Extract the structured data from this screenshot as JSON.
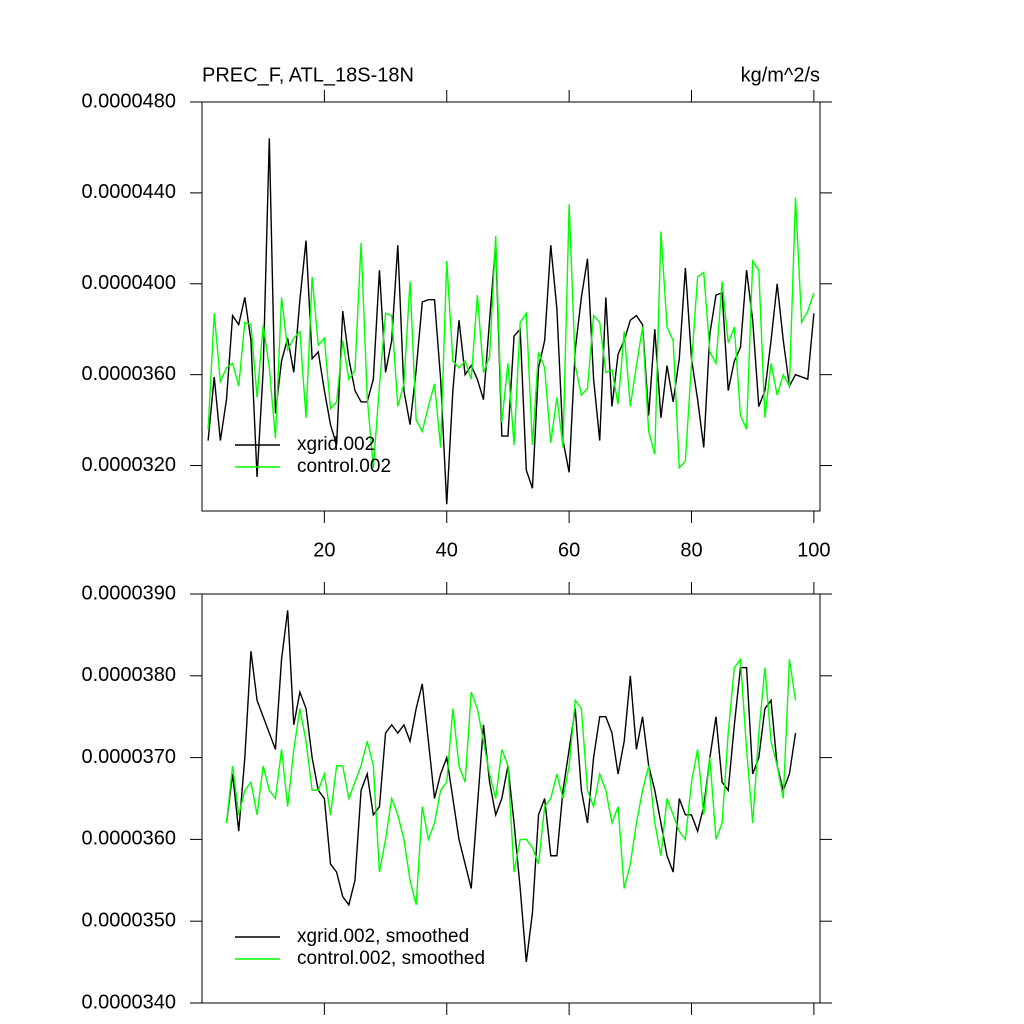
{
  "chart_data": [
    {
      "type": "line",
      "title": "PREC_F, ATL_18S-18N",
      "units": "kg/m^2/s",
      "legend": "lower left",
      "x": [
        1,
        2,
        3,
        4,
        5,
        6,
        7,
        8,
        9,
        10,
        11,
        12,
        13,
        14,
        15,
        16,
        17,
        18,
        19,
        20,
        21,
        22,
        23,
        24,
        25,
        26,
        27,
        28,
        29,
        30,
        31,
        32,
        33,
        34,
        35,
        36,
        37,
        38,
        39,
        40,
        41,
        42,
        43,
        44,
        45,
        46,
        47,
        48,
        49,
        50,
        51,
        52,
        53,
        54,
        55,
        56,
        57,
        58,
        59,
        60,
        61,
        62,
        63,
        64,
        65,
        66,
        67,
        68,
        69,
        70,
        71,
        72,
        73,
        74,
        75,
        76,
        77,
        78,
        79,
        80,
        81,
        82,
        83,
        84,
        85,
        86,
        87,
        88,
        89,
        90,
        91,
        92,
        93,
        94,
        95,
        96,
        97,
        98,
        99,
        100
      ],
      "xlim": [
        0,
        101
      ],
      "xticks": [
        20,
        40,
        60,
        80,
        100
      ],
      "ylim": [
        3e-05,
        4.8e-05
      ],
      "yticks": [
        {
          "value": 3.2e-05,
          "label": "0.0000320"
        },
        {
          "value": 3.6e-05,
          "label": "0.0000360"
        },
        {
          "value": 4e-05,
          "label": "0.0000400"
        },
        {
          "value": 4.4e-05,
          "label": "0.0000440"
        },
        {
          "value": 4.8e-05,
          "label": "0.0000480"
        }
      ],
      "series": [
        {
          "name": "xgrid.002",
          "color": "#000000",
          "values": [
            3.31e-05,
            3.59e-05,
            3.31e-05,
            3.49e-05,
            3.86e-05,
            3.82e-05,
            3.94e-05,
            3.75e-05,
            3.15e-05,
            3.62e-05,
            4.64e-05,
            3.43e-05,
            3.66e-05,
            3.76e-05,
            3.61e-05,
            3.93e-05,
            4.19e-05,
            3.67e-05,
            3.7e-05,
            3.53e-05,
            3.38e-05,
            3.29e-05,
            3.88e-05,
            3.67e-05,
            3.53e-05,
            3.48e-05,
            3.48e-05,
            3.58e-05,
            4.06e-05,
            3.61e-05,
            3.75e-05,
            4.17e-05,
            3.53e-05,
            3.38e-05,
            3.62e-05,
            3.92e-05,
            3.93e-05,
            3.93e-05,
            3.58e-05,
            3.03e-05,
            3.53e-05,
            3.84e-05,
            3.6e-05,
            3.64e-05,
            3.58e-05,
            3.49e-05,
            3.84e-05,
            4.18e-05,
            3.33e-05,
            3.33e-05,
            3.77e-05,
            3.8e-05,
            3.18e-05,
            3.1e-05,
            3.63e-05,
            3.75e-05,
            4.17e-05,
            3.89e-05,
            3.31e-05,
            3.17e-05,
            3.71e-05,
            3.94e-05,
            4.11e-05,
            3.58e-05,
            3.31e-05,
            3.94e-05,
            3.46e-05,
            3.69e-05,
            3.75e-05,
            3.84e-05,
            3.86e-05,
            3.82e-05,
            3.42e-05,
            3.8e-05,
            3.41e-05,
            3.64e-05,
            3.48e-05,
            3.67e-05,
            4.07e-05,
            3.67e-05,
            3.49e-05,
            3.28e-05,
            3.78e-05,
            3.95e-05,
            3.96e-05,
            3.53e-05,
            3.66e-05,
            3.72e-05,
            4.06e-05,
            3.84e-05,
            3.46e-05,
            3.53e-05,
            3.75e-05,
            4e-05,
            3.75e-05,
            3.55e-05,
            3.6e-05,
            3.59e-05,
            3.58e-05,
            3.87e-05
          ]
        },
        {
          "name": "control.002",
          "color": "#00ff00",
          "values": [
            3.36e-05,
            3.87e-05,
            3.57e-05,
            3.63e-05,
            3.65e-05,
            3.55e-05,
            3.83e-05,
            3.82e-05,
            3.5e-05,
            3.82e-05,
            3.63e-05,
            3.32e-05,
            3.94e-05,
            3.71e-05,
            3.76e-05,
            3.79e-05,
            3.41e-05,
            4.03e-05,
            3.73e-05,
            3.76e-05,
            3.45e-05,
            3.48e-05,
            3.75e-05,
            3.58e-05,
            3.62e-05,
            4.18e-05,
            3.5e-05,
            3.19e-05,
            3.55e-05,
            3.87e-05,
            3.86e-05,
            3.46e-05,
            3.56e-05,
            4.01e-05,
            3.4e-05,
            3.35e-05,
            3.46e-05,
            3.56e-05,
            3.28e-05,
            4.1e-05,
            3.66e-05,
            3.63e-05,
            3.66e-05,
            3.58e-05,
            3.95e-05,
            3.61e-05,
            3.68e-05,
            4.21e-05,
            3.39e-05,
            3.65e-05,
            3.29e-05,
            3.83e-05,
            3.87e-05,
            3.29e-05,
            3.7e-05,
            3.63e-05,
            3.3e-05,
            3.5e-05,
            3.28e-05,
            4.35e-05,
            3.64e-05,
            3.51e-05,
            3.54e-05,
            3.86e-05,
            3.83e-05,
            3.61e-05,
            3.62e-05,
            3.47e-05,
            3.79e-05,
            3.46e-05,
            3.64e-05,
            3.81e-05,
            3.35e-05,
            3.25e-05,
            4.23e-05,
            3.81e-05,
            3.75e-05,
            3.19e-05,
            3.22e-05,
            3.65e-05,
            4.03e-05,
            4.05e-05,
            3.7e-05,
            3.65e-05,
            4.01e-05,
            3.74e-05,
            3.81e-05,
            3.42e-05,
            3.36e-05,
            4.1e-05,
            4.06e-05,
            3.41e-05,
            3.65e-05,
            3.51e-05,
            3.6e-05,
            3.55e-05,
            4.38e-05,
            3.83e-05,
            3.88e-05,
            3.96e-05
          ]
        }
      ]
    },
    {
      "type": "line",
      "legend": "lower left",
      "x": [
        4,
        5,
        6,
        7,
        8,
        9,
        10,
        11,
        12,
        13,
        14,
        15,
        16,
        17,
        18,
        19,
        20,
        21,
        22,
        23,
        24,
        25,
        26,
        27,
        28,
        29,
        30,
        31,
        32,
        33,
        34,
        35,
        36,
        37,
        38,
        39,
        40,
        41,
        42,
        43,
        44,
        45,
        46,
        47,
        48,
        49,
        50,
        51,
        52,
        53,
        54,
        55,
        56,
        57,
        58,
        59,
        60,
        61,
        62,
        63,
        64,
        65,
        66,
        67,
        68,
        69,
        70,
        71,
        72,
        73,
        74,
        75,
        76,
        77,
        78,
        79,
        80,
        81,
        82,
        83,
        84,
        85,
        86,
        87,
        88,
        89,
        90,
        91,
        92,
        93,
        94,
        95,
        96,
        97
      ],
      "xlim": [
        0,
        101
      ],
      "ylim": [
        3.4e-05,
        3.9e-05
      ],
      "yticks": [
        {
          "value": 3.4e-05,
          "label": "0.0000340"
        },
        {
          "value": 3.5e-05,
          "label": "0.0000350"
        },
        {
          "value": 3.6e-05,
          "label": "0.0000360"
        },
        {
          "value": 3.7e-05,
          "label": "0.0000370"
        },
        {
          "value": 3.8e-05,
          "label": "0.0000380"
        },
        {
          "value": 3.9e-05,
          "label": "0.0000390"
        }
      ],
      "series": [
        {
          "name": "xgrid.002, smoothed",
          "color": "#000000",
          "values": [
            3.62e-05,
            3.68e-05,
            3.61e-05,
            3.7e-05,
            3.83e-05,
            3.77e-05,
            3.75e-05,
            3.73e-05,
            3.71e-05,
            3.82e-05,
            3.88e-05,
            3.74e-05,
            3.78e-05,
            3.76e-05,
            3.7e-05,
            3.66e-05,
            3.65e-05,
            3.57e-05,
            3.56e-05,
            3.53e-05,
            3.52e-05,
            3.55e-05,
            3.66e-05,
            3.68e-05,
            3.63e-05,
            3.64e-05,
            3.73e-05,
            3.74e-05,
            3.73e-05,
            3.74e-05,
            3.72e-05,
            3.76e-05,
            3.79e-05,
            3.72e-05,
            3.65e-05,
            3.68e-05,
            3.7e-05,
            3.65e-05,
            3.6e-05,
            3.57e-05,
            3.54e-05,
            3.64e-05,
            3.74e-05,
            3.67e-05,
            3.63e-05,
            3.65e-05,
            3.69e-05,
            3.62e-05,
            3.54e-05,
            3.45e-05,
            3.51e-05,
            3.63e-05,
            3.65e-05,
            3.58e-05,
            3.58e-05,
            3.66e-05,
            3.71e-05,
            3.76e-05,
            3.66e-05,
            3.62e-05,
            3.7e-05,
            3.75e-05,
            3.75e-05,
            3.73e-05,
            3.68e-05,
            3.72e-05,
            3.8e-05,
            3.71e-05,
            3.75e-05,
            3.69e-05,
            3.66e-05,
            3.62e-05,
            3.58e-05,
            3.56e-05,
            3.65e-05,
            3.63e-05,
            3.63e-05,
            3.61e-05,
            3.64e-05,
            3.7e-05,
            3.75e-05,
            3.67e-05,
            3.66e-05,
            3.74e-05,
            3.81e-05,
            3.81e-05,
            3.68e-05,
            3.7e-05,
            3.76e-05,
            3.77e-05,
            3.69e-05,
            3.66e-05,
            3.68e-05,
            3.73e-05
          ]
        },
        {
          "name": "control.002, smoothed",
          "color": "#00ff00",
          "values": [
            3.62e-05,
            3.69e-05,
            3.63e-05,
            3.66e-05,
            3.67e-05,
            3.63e-05,
            3.69e-05,
            3.66e-05,
            3.65e-05,
            3.71e-05,
            3.64e-05,
            3.71e-05,
            3.76e-05,
            3.72e-05,
            3.66e-05,
            3.66e-05,
            3.68e-05,
            3.63e-05,
            3.69e-05,
            3.69e-05,
            3.65e-05,
            3.67e-05,
            3.69e-05,
            3.72e-05,
            3.69e-05,
            3.56e-05,
            3.6e-05,
            3.65e-05,
            3.63e-05,
            3.6e-05,
            3.55e-05,
            3.52e-05,
            3.64e-05,
            3.6e-05,
            3.62e-05,
            3.66e-05,
            3.67e-05,
            3.76e-05,
            3.69e-05,
            3.67e-05,
            3.78e-05,
            3.76e-05,
            3.72e-05,
            3.68e-05,
            3.65e-05,
            3.71e-05,
            3.69e-05,
            3.56e-05,
            3.6e-05,
            3.6e-05,
            3.59e-05,
            3.57e-05,
            3.64e-05,
            3.65e-05,
            3.68e-05,
            3.65e-05,
            3.69e-05,
            3.77e-05,
            3.76e-05,
            3.66e-05,
            3.64e-05,
            3.68e-05,
            3.66e-05,
            3.62e-05,
            3.64e-05,
            3.54e-05,
            3.57e-05,
            3.62e-05,
            3.66e-05,
            3.69e-05,
            3.62e-05,
            3.58e-05,
            3.65e-05,
            3.63e-05,
            3.61e-05,
            3.6e-05,
            3.67e-05,
            3.71e-05,
            3.63e-05,
            3.7e-05,
            3.6e-05,
            3.62e-05,
            3.73e-05,
            3.81e-05,
            3.82e-05,
            3.71e-05,
            3.62e-05,
            3.73e-05,
            3.81e-05,
            3.72e-05,
            3.69e-05,
            3.65e-05,
            3.82e-05,
            3.77e-05
          ]
        }
      ]
    }
  ]
}
